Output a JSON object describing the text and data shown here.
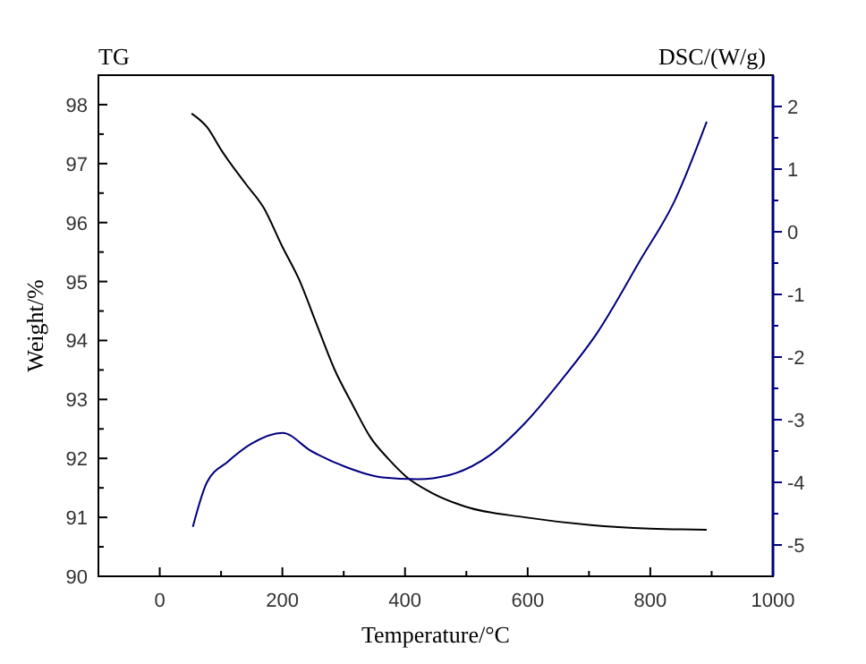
{
  "chart_data": {
    "type": "line",
    "xlabel": "Temperature/°C",
    "ylabel": "Weight/%",
    "y2label": "DSC/(W/g)",
    "annotations": [
      "TG"
    ],
    "xlim": [
      -100,
      1000
    ],
    "ylim": [
      90,
      98.5
    ],
    "y2lim": [
      -5.5,
      2.5
    ],
    "xticks": [
      {
        "value": -100,
        "label": null
      },
      0,
      {
        "value": 100,
        "label": null
      },
      200,
      {
        "value": 300,
        "label": null
      },
      400,
      {
        "value": 500,
        "label": null
      },
      600,
      {
        "value": 700,
        "label": null
      },
      800,
      {
        "value": 900,
        "label": null
      },
      1000
    ],
    "yticks": [
      90,
      {
        "value": 90.5,
        "label": null
      },
      91,
      {
        "value": 91.5,
        "label": null
      },
      92,
      {
        "value": 92.5,
        "label": null
      },
      93,
      {
        "value": 93.5,
        "label": null
      },
      94,
      {
        "value": 94.5,
        "label": null
      },
      95,
      {
        "value": 95.5,
        "label": null
      },
      96,
      {
        "value": 96.5,
        "label": null
      },
      97,
      {
        "value": 97.5,
        "label": null
      },
      98
    ],
    "y2ticks": [
      -5,
      {
        "value": -4.5,
        "label": null
      },
      -4,
      {
        "value": -3.5,
        "label": null
      },
      -3,
      {
        "value": -2.5,
        "label": null
      },
      -2,
      {
        "value": -1.5,
        "label": null
      },
      -1,
      {
        "value": -0.5,
        "label": null
      },
      0,
      {
        "value": 0.5,
        "label": null
      },
      1,
      {
        "value": 1.5,
        "label": null
      },
      2
    ],
    "grid": false,
    "marker": "none",
    "line_style": "solid",
    "series": [
      {
        "color": "#000000",
        "x": [
          52,
          77,
          101,
          140,
          169,
          200,
          227,
          256,
          285,
          315,
          344,
          373,
          402,
          441,
          499,
          596,
          703,
          800,
          892
        ],
        "values": [
          97.85,
          97.62,
          97.22,
          96.66,
          96.26,
          95.59,
          95.04,
          94.27,
          93.51,
          92.9,
          92.35,
          91.99,
          91.69,
          91.43,
          91.18,
          91.0,
          90.87,
          90.81,
          90.79
        ]
      },
      {
        "color": "#000080",
        "axis": "y2",
        "x": [
          54,
          77,
          111,
          150,
          200,
          247,
          305,
          363,
          421,
          470,
          538,
          596,
          654,
          713,
          785,
          839,
          892
        ],
        "values": [
          -4.71,
          -4.0,
          -3.67,
          -3.38,
          -3.21,
          -3.5,
          -3.76,
          -3.92,
          -3.95,
          -3.89,
          -3.57,
          -3.05,
          -2.38,
          -1.62,
          -0.43,
          0.48,
          1.76
        ]
      }
    ]
  }
}
